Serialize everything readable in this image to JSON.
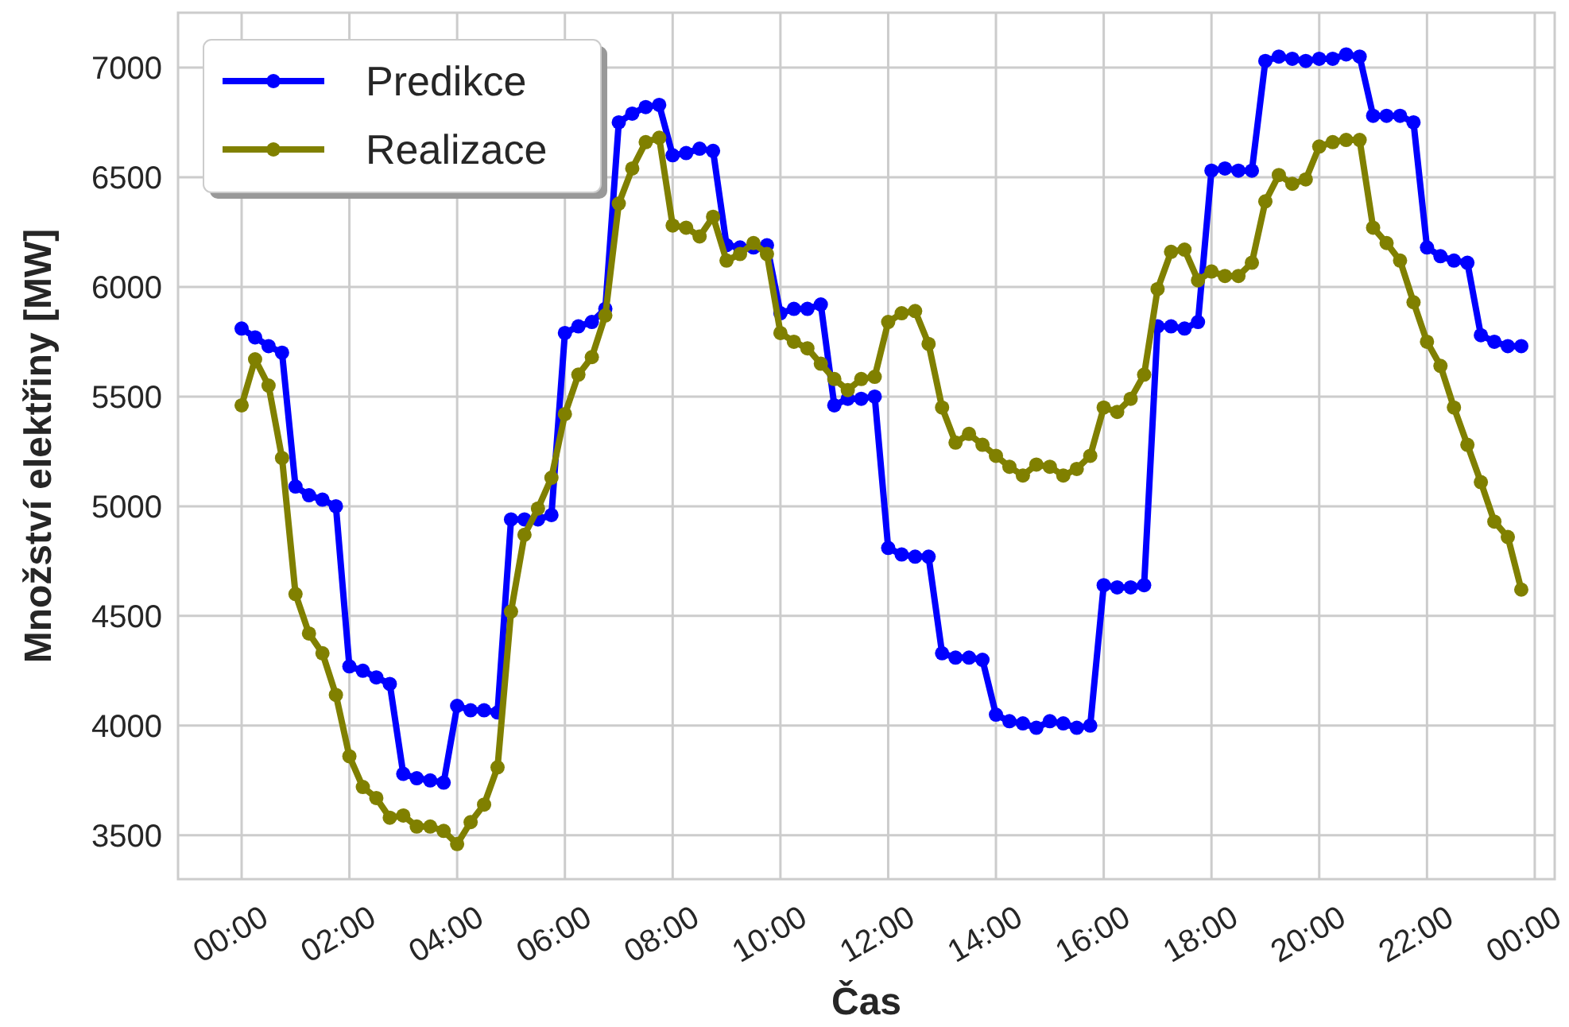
{
  "chart_data": {
    "type": "line",
    "xlabel": "Čas",
    "ylabel": "Množství elektřiny [MW]",
    "x": [
      0,
      0.25,
      0.5,
      0.75,
      1,
      1.25,
      1.5,
      1.75,
      2,
      2.25,
      2.5,
      2.75,
      3,
      3.25,
      3.5,
      3.75,
      4,
      4.25,
      4.5,
      4.75,
      5,
      5.25,
      5.5,
      5.75,
      6,
      6.25,
      6.5,
      6.75,
      7,
      7.25,
      7.5,
      7.75,
      8,
      8.25,
      8.5,
      8.75,
      9,
      9.25,
      9.5,
      9.75,
      10,
      10.25,
      10.5,
      10.75,
      11,
      11.25,
      11.5,
      11.75,
      12,
      12.25,
      12.5,
      12.75,
      13,
      13.25,
      13.5,
      13.75,
      14,
      14.25,
      14.5,
      14.75,
      15,
      15.25,
      15.5,
      15.75,
      16,
      16.25,
      16.5,
      16.75,
      17,
      17.25,
      17.5,
      17.75,
      18,
      18.25,
      18.5,
      18.75,
      19,
      19.25,
      19.5,
      19.75,
      20,
      20.25,
      20.5,
      20.75,
      21,
      21.25,
      21.5,
      21.75,
      22,
      22.25,
      22.5,
      22.75,
      23,
      23.25,
      23.5,
      23.75
    ],
    "series": [
      {
        "name": "Predikce",
        "color": "#0000ff",
        "values": [
          5810,
          5770,
          5730,
          5700,
          5090,
          5050,
          5030,
          5000,
          4270,
          4250,
          4220,
          4190,
          3780,
          3760,
          3750,
          3740,
          4090,
          4070,
          4070,
          4060,
          4940,
          4940,
          4940,
          4960,
          5790,
          5820,
          5840,
          5900,
          6750,
          6790,
          6820,
          6830,
          6600,
          6610,
          6630,
          6620,
          6190,
          6180,
          6180,
          6190,
          5880,
          5900,
          5900,
          5920,
          5460,
          5490,
          5490,
          5500,
          4810,
          4780,
          4770,
          4770,
          4330,
          4310,
          4310,
          4300,
          4050,
          4020,
          4010,
          3990,
          4020,
          4010,
          3990,
          4000,
          4640,
          4630,
          4630,
          4640,
          5820,
          5820,
          5810,
          5840,
          6530,
          6540,
          6530,
          6530,
          7030,
          7050,
          7040,
          7030,
          7040,
          7040,
          7060,
          7050,
          6780,
          6780,
          6780,
          6750,
          6180,
          6140,
          6120,
          6110,
          5780,
          5750,
          5730,
          5730
        ]
      },
      {
        "name": "Realizace",
        "color": "#808000",
        "values": [
          5460,
          5670,
          5550,
          5220,
          4600,
          4420,
          4330,
          4140,
          3860,
          3720,
          3670,
          3580,
          3590,
          3540,
          3540,
          3520,
          3460,
          3560,
          3640,
          3810,
          4520,
          4870,
          4990,
          5130,
          5420,
          5600,
          5680,
          5870,
          6380,
          6540,
          6660,
          6680,
          6280,
          6270,
          6230,
          6320,
          6120,
          6150,
          6200,
          6150,
          5790,
          5750,
          5720,
          5650,
          5580,
          5530,
          5580,
          5590,
          5840,
          5880,
          5890,
          5740,
          5450,
          5290,
          5330,
          5280,
          5230,
          5180,
          5140,
          5190,
          5180,
          5140,
          5170,
          5230,
          5450,
          5430,
          5490,
          5600,
          5990,
          6160,
          6170,
          6030,
          6070,
          6050,
          6050,
          6110,
          6390,
          6510,
          6470,
          6490,
          6640,
          6660,
          6670,
          6670,
          6270,
          6200,
          6120,
          5930,
          5750,
          5640,
          5450,
          5280,
          5110,
          4930,
          4860,
          4620
        ]
      }
    ],
    "xlim": [
      -1.18,
      24.37
    ],
    "xticks": [
      {
        "value": 0,
        "label": "00:00"
      },
      {
        "value": 2,
        "label": "02:00"
      },
      {
        "value": 4,
        "label": "04:00"
      },
      {
        "value": 6,
        "label": "06:00"
      },
      {
        "value": 8,
        "label": "08:00"
      },
      {
        "value": 10,
        "label": "10:00"
      },
      {
        "value": 12,
        "label": "12:00"
      },
      {
        "value": 14,
        "label": "14:00"
      },
      {
        "value": 16,
        "label": "16:00"
      },
      {
        "value": 18,
        "label": "18:00"
      },
      {
        "value": 20,
        "label": "20:00"
      },
      {
        "value": 22,
        "label": "22:00"
      },
      {
        "value": 24,
        "label": "00:00"
      }
    ],
    "ylim": [
      3300,
      7250
    ],
    "yticks": [
      3500,
      4000,
      4500,
      5000,
      5500,
      6000,
      6500,
      7000
    ],
    "grid": true,
    "legend": "top left",
    "marker": "circle",
    "line_style": "solid"
  }
}
